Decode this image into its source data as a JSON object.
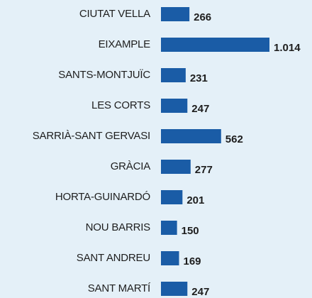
{
  "chart_data": {
    "type": "bar",
    "orientation": "horizontal",
    "categories": [
      "CIUTAT VELLA",
      "EIXAMPLE",
      "SANTS-MONTJUÏC",
      "LES CORTS",
      "SARRIÀ-SANT GERVASI",
      "GRÀCIA",
      "HORTA-GUINARDÓ",
      "NOU BARRIS",
      "SANT ANDREU",
      "SANT MARTÍ"
    ],
    "values": [
      266,
      1014,
      231,
      247,
      562,
      277,
      201,
      150,
      169,
      247
    ],
    "value_labels": [
      "266",
      "1.014",
      "231",
      "247",
      "562",
      "277",
      "201",
      "150",
      "169",
      "247"
    ],
    "color": "#1a5ca6"
  }
}
